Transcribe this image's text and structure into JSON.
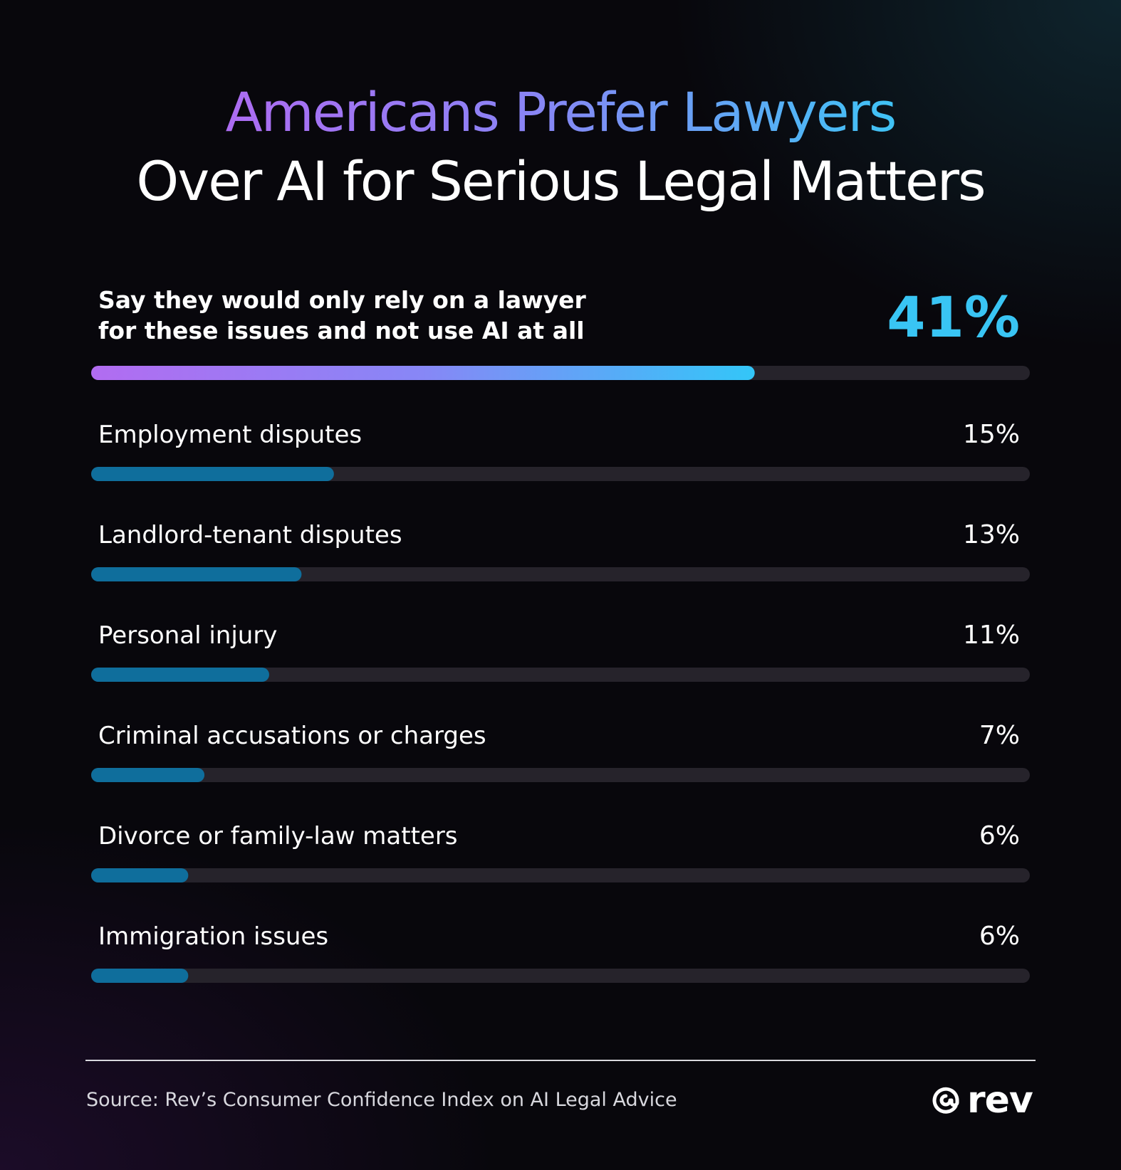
{
  "title": {
    "line1": "Americans Prefer Lawyers",
    "line2": "Over AI for Serious Legal Matters"
  },
  "chart_data": {
    "type": "bar",
    "orientation": "horizontal",
    "xlim": [
      0,
      58
    ],
    "highlight": {
      "label_lines": [
        "Say they would only rely on a lawyer",
        "for these issues and not use AI at all"
      ],
      "value": 41,
      "value_label": "41%"
    },
    "categories": [
      "Employment disputes",
      "Landlord-tenant disputes",
      "Personal injury",
      "Criminal accusations or charges",
      "Divorce or family-law matters",
      "Immigration issues"
    ],
    "values": [
      15,
      13,
      11,
      7,
      6,
      6
    ],
    "value_labels": [
      "15%",
      "13%",
      "11%",
      "7%",
      "6%",
      "6%"
    ]
  },
  "colors": {
    "track": "#26232b",
    "bar": "#0f6e9c",
    "highlight_gradient": [
      "#b26cf1",
      "#8787f6",
      "#33c6f8"
    ],
    "highlight_value": "#39c5f4",
    "text": "#ffffff"
  },
  "footer": {
    "source": "Source: Rev’s Consumer Confidence Index on AI Legal Advice",
    "logo_text": "rev",
    "logo_icon": "at-sign-icon"
  }
}
